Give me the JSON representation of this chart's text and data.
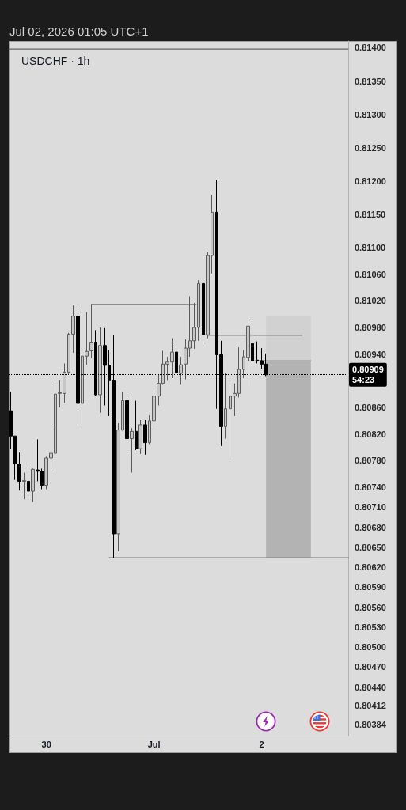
{
  "chart_data": {
    "type": "candlestick",
    "title": "USDCHF · 1h",
    "annotations": [
      "Jul 02, 2026 01:05 UTC+1"
    ],
    "x": [
      "2026-06-29T16:00",
      "2026-06-29T17:00",
      "2026-06-29T18:00",
      "2026-06-29T19:00",
      "2026-06-29T20:00",
      "2026-06-29T21:00",
      "2026-06-29T22:00",
      "2026-06-29T23:00",
      "2026-06-30T00:00",
      "2026-06-30T01:00",
      "2026-06-30T02:00",
      "2026-06-30T03:00",
      "2026-06-30T04:00",
      "2026-06-30T05:00",
      "2026-06-30T06:00",
      "2026-06-30T07:00",
      "2026-06-30T08:00",
      "2026-06-30T09:00",
      "2026-06-30T10:00",
      "2026-06-30T11:00",
      "2026-06-30T12:00",
      "2026-06-30T13:00",
      "2026-06-30T14:00",
      "2026-06-30T15:00",
      "2026-06-30T16:00",
      "2026-06-30T17:00",
      "2026-06-30T18:00",
      "2026-06-30T19:00",
      "2026-06-30T20:00",
      "2026-06-30T21:00",
      "2026-06-30T22:00",
      "2026-06-30T23:00",
      "2026-07-01T00:00",
      "2026-07-01T01:00",
      "2026-07-01T02:00",
      "2026-07-01T03:00",
      "2026-07-01T04:00",
      "2026-07-01T05:00",
      "2026-07-01T06:00",
      "2026-07-01T07:00",
      "2026-07-01T08:00",
      "2026-07-01T09:00",
      "2026-07-01T10:00",
      "2026-07-01T11:00",
      "2026-07-01T12:00",
      "2026-07-01T13:00",
      "2026-07-01T14:00",
      "2026-07-01T15:00",
      "2026-07-01T16:00",
      "2026-07-01T17:00",
      "2026-07-01T18:00",
      "2026-07-01T19:00",
      "2026-07-01T20:00",
      "2026-07-01T21:00",
      "2026-07-01T22:00",
      "2026-07-01T23:00",
      "2026-07-02T00:00",
      "2026-07-02T01:00"
    ],
    "ohlc": [
      [
        0.80855,
        0.80883,
        0.80797,
        0.80817
      ],
      [
        0.80817,
        0.80817,
        0.80751,
        0.80775
      ],
      [
        0.80775,
        0.80792,
        0.80735,
        0.80749
      ],
      [
        0.80749,
        0.80762,
        0.80722,
        0.8075
      ],
      [
        0.80749,
        0.80774,
        0.80723,
        0.80734
      ],
      [
        0.80734,
        0.80768,
        0.80718,
        0.80767
      ],
      [
        0.80766,
        0.80812,
        0.80749,
        0.80764
      ],
      [
        0.80764,
        0.80768,
        0.80737,
        0.80743
      ],
      [
        0.80743,
        0.80786,
        0.80737,
        0.80784
      ],
      [
        0.80784,
        0.80834,
        0.80767,
        0.80791
      ],
      [
        0.80791,
        0.80893,
        0.80784,
        0.8088
      ],
      [
        0.80881,
        0.80901,
        0.8086,
        0.80882
      ],
      [
        0.80881,
        0.80926,
        0.80867,
        0.80913
      ],
      [
        0.80913,
        0.80972,
        0.8091,
        0.8097
      ],
      [
        0.8097,
        0.81013,
        0.80942,
        0.80997
      ],
      [
        0.80997,
        0.81013,
        0.8086,
        0.80866
      ],
      [
        0.80866,
        0.80946,
        0.80833,
        0.80937
      ],
      [
        0.80937,
        0.81003,
        0.80924,
        0.80944
      ],
      [
        0.80945,
        0.81015,
        0.80934,
        0.80958
      ],
      [
        0.80958,
        0.80976,
        0.80877,
        0.80879
      ],
      [
        0.80879,
        0.8098,
        0.80852,
        0.80953
      ],
      [
        0.80953,
        0.80979,
        0.80863,
        0.80923
      ],
      [
        0.80923,
        0.80946,
        0.80847,
        0.809
      ],
      [
        0.809,
        0.80968,
        0.80634,
        0.8067
      ],
      [
        0.8067,
        0.80836,
        0.80644,
        0.80826
      ],
      [
        0.80826,
        0.80883,
        0.80825,
        0.8087
      ],
      [
        0.8087,
        0.80874,
        0.80795,
        0.80813
      ],
      [
        0.80813,
        0.80829,
        0.80762,
        0.80824
      ],
      [
        0.80824,
        0.8087,
        0.80796,
        0.80798
      ],
      [
        0.80798,
        0.80841,
        0.8079,
        0.80834
      ],
      [
        0.80834,
        0.80841,
        0.80789,
        0.80807
      ],
      [
        0.80807,
        0.80848,
        0.80805,
        0.8084
      ],
      [
        0.8084,
        0.80889,
        0.80826,
        0.80877
      ],
      [
        0.80877,
        0.8091,
        0.80863,
        0.80896
      ],
      [
        0.80896,
        0.80945,
        0.80894,
        0.80925
      ],
      [
        0.80925,
        0.80936,
        0.809,
        0.80928
      ],
      [
        0.80928,
        0.80964,
        0.80904,
        0.80943
      ],
      [
        0.80943,
        0.80954,
        0.80904,
        0.80912
      ],
      [
        0.80911,
        0.80936,
        0.80894,
        0.80924
      ],
      [
        0.80925,
        0.80962,
        0.80902,
        0.80949
      ],
      [
        0.80949,
        0.81027,
        0.80936,
        0.8096
      ],
      [
        0.8096,
        0.81017,
        0.80948,
        0.8098
      ],
      [
        0.8098,
        0.81051,
        0.8096,
        0.81046
      ],
      [
        0.81046,
        0.8105,
        0.80956,
        0.80969
      ],
      [
        0.80969,
        0.81093,
        0.80964,
        0.81088
      ],
      [
        0.81088,
        0.81179,
        0.81061,
        0.81153
      ],
      [
        0.81153,
        0.81202,
        0.80858,
        0.80939
      ],
      [
        0.80939,
        0.8096,
        0.80802,
        0.80831
      ],
      [
        0.80831,
        0.80911,
        0.80813,
        0.80858
      ],
      [
        0.80858,
        0.809,
        0.80784,
        0.80877
      ],
      [
        0.80877,
        0.80896,
        0.80847,
        0.80881
      ],
      [
        0.80881,
        0.8095,
        0.80875,
        0.80917
      ],
      [
        0.80917,
        0.80946,
        0.80904,
        0.80936
      ],
      [
        0.80935,
        0.80982,
        0.8093,
        0.80982
      ],
      [
        0.80956,
        0.80993,
        0.80892,
        0.8093
      ],
      [
        0.80931,
        0.80959,
        0.80926,
        0.8093
      ],
      [
        0.8093,
        0.80949,
        0.80918,
        0.80925
      ],
      [
        0.80925,
        0.80941,
        0.80907,
        0.80909
      ]
    ],
    "colors": [
      "#000000",
      "#000000",
      "#000000",
      "#c6c6c6",
      "#000000",
      "#c6c6c6",
      "#000000",
      "#000000",
      "#c6c6c6",
      "#c6c6c6",
      "#c6c6c6",
      "#c6c6c6",
      "#c6c6c6",
      "#c6c6c6",
      "#c6c6c6",
      "#000000",
      "#c6c6c6",
      "#c6c6c6",
      "#c6c6c6",
      "#000000",
      "#c6c6c6",
      "#000000",
      "#000000",
      "#000000",
      "#c6c6c6",
      "#c6c6c6",
      "#000000",
      "#c6c6c6",
      "#000000",
      "#c6c6c6",
      "#000000",
      "#c6c6c6",
      "#c6c6c6",
      "#c6c6c6",
      "#c6c6c6",
      "#c6c6c6",
      "#c6c6c6",
      "#000000",
      "#c6c6c6",
      "#c6c6c6",
      "#c6c6c6",
      "#c6c6c6",
      "#c6c6c6",
      "#000000",
      "#c6c6c6",
      "#c6c6c6",
      "#000000",
      "#000000",
      "#c6c6c6",
      "#c6c6c6",
      "#c6c6c6",
      "#c6c6c6",
      "#c6c6c6",
      "#c6c6c6",
      "#000000",
      "#000000",
      "#000000",
      "#000000"
    ],
    "series": [
      {
        "type": "line",
        "x": [
          "2026-06-29T15:45",
          "2026-07-02T19:20"
        ],
        "values": [
          0.81398,
          0.81398
        ],
        "color": "#4a4a4a"
      },
      {
        "type": "line",
        "x": [
          "2026-06-30T10:00",
          "2026-07-01T09:25"
        ],
        "values": [
          0.81015,
          0.81015
        ],
        "color": "#8c8c8c"
      },
      {
        "type": "line",
        "x": [
          "2026-07-01T12:00",
          "2026-07-02T09:00"
        ],
        "values": [
          0.80968,
          0.80968
        ],
        "color": "#8c8c8c"
      },
      {
        "type": "line",
        "x": [
          "2026-06-30T14:00",
          "2026-07-02T19:20"
        ],
        "values": [
          0.80634,
          0.80634
        ],
        "color": "#1a1a1a"
      },
      {
        "type": "line",
        "x": [
          "2026-07-02T01:00",
          "2026-07-02T11:00"
        ],
        "values": [
          0.8093,
          0.8093
        ],
        "upper": [
          0.80997,
          0.80997
        ],
        "lower": [
          0.80635,
          0.80635
        ],
        "color": "#8a8a8a"
      },
      {
        "type": "line",
        "x": [
          "2026-07-01T22:25",
          "2026-07-02T01:00"
        ],
        "values": [
          0.8093,
          0.8093
        ],
        "color": "#6e6e6e"
      }
    ],
    "ref_lines": [
      {
        "axis": "y",
        "value": 0.80909,
        "label": "0.80909\n54:23",
        "line_style": "dotted",
        "color": "#000000"
      }
    ],
    "xlim": [
      "2026-06-29T15:45",
      "2026-07-02T19:20"
    ],
    "xticks": [
      {
        "value": "2026-06-30",
        "label": "30"
      },
      {
        "value": "2026-07-01",
        "label": "Jul"
      },
      {
        "value": "2026-07-02",
        "label": "2"
      }
    ],
    "ylim": [
      0.80367,
      0.8141
    ],
    "yticks": [
      {
        "value": 0.814,
        "label": "0.81400"
      },
      {
        "value": 0.8135,
        "label": "0.81350"
      },
      {
        "value": 0.813,
        "label": "0.81300"
      },
      {
        "value": 0.8125,
        "label": "0.81250"
      },
      {
        "value": 0.812,
        "label": "0.81200"
      },
      {
        "value": 0.8115,
        "label": "0.81150"
      },
      {
        "value": 0.811,
        "label": "0.81100"
      },
      {
        "value": 0.8106,
        "label": "0.81060"
      },
      {
        "value": 0.8102,
        "label": "0.81020"
      },
      {
        "value": 0.8098,
        "label": "0.80980"
      },
      {
        "value": 0.8094,
        "label": "0.80940"
      },
      {
        "value": 0.8086,
        "label": "0.80860"
      },
      {
        "value": 0.8082,
        "label": "0.80820"
      },
      {
        "value": 0.8078,
        "label": "0.80780"
      },
      {
        "value": 0.8074,
        "label": "0.80740"
      },
      {
        "value": 0.8071,
        "label": "0.80710"
      },
      {
        "value": 0.8068,
        "label": "0.80680"
      },
      {
        "value": 0.8065,
        "label": "0.80650"
      },
      {
        "value": 0.8062,
        "label": "0.80620"
      },
      {
        "value": 0.8059,
        "label": "0.80590"
      },
      {
        "value": 0.8056,
        "label": "0.80560"
      },
      {
        "value": 0.8053,
        "label": "0.80530"
      },
      {
        "value": 0.805,
        "label": "0.80500"
      },
      {
        "value": 0.8047,
        "label": "0.80470"
      },
      {
        "value": 0.8044,
        "label": "0.80440"
      },
      {
        "value": 0.80412,
        "label": "0.80412"
      },
      {
        "value": 0.80384,
        "label": "0.80384"
      }
    ]
  }
}
